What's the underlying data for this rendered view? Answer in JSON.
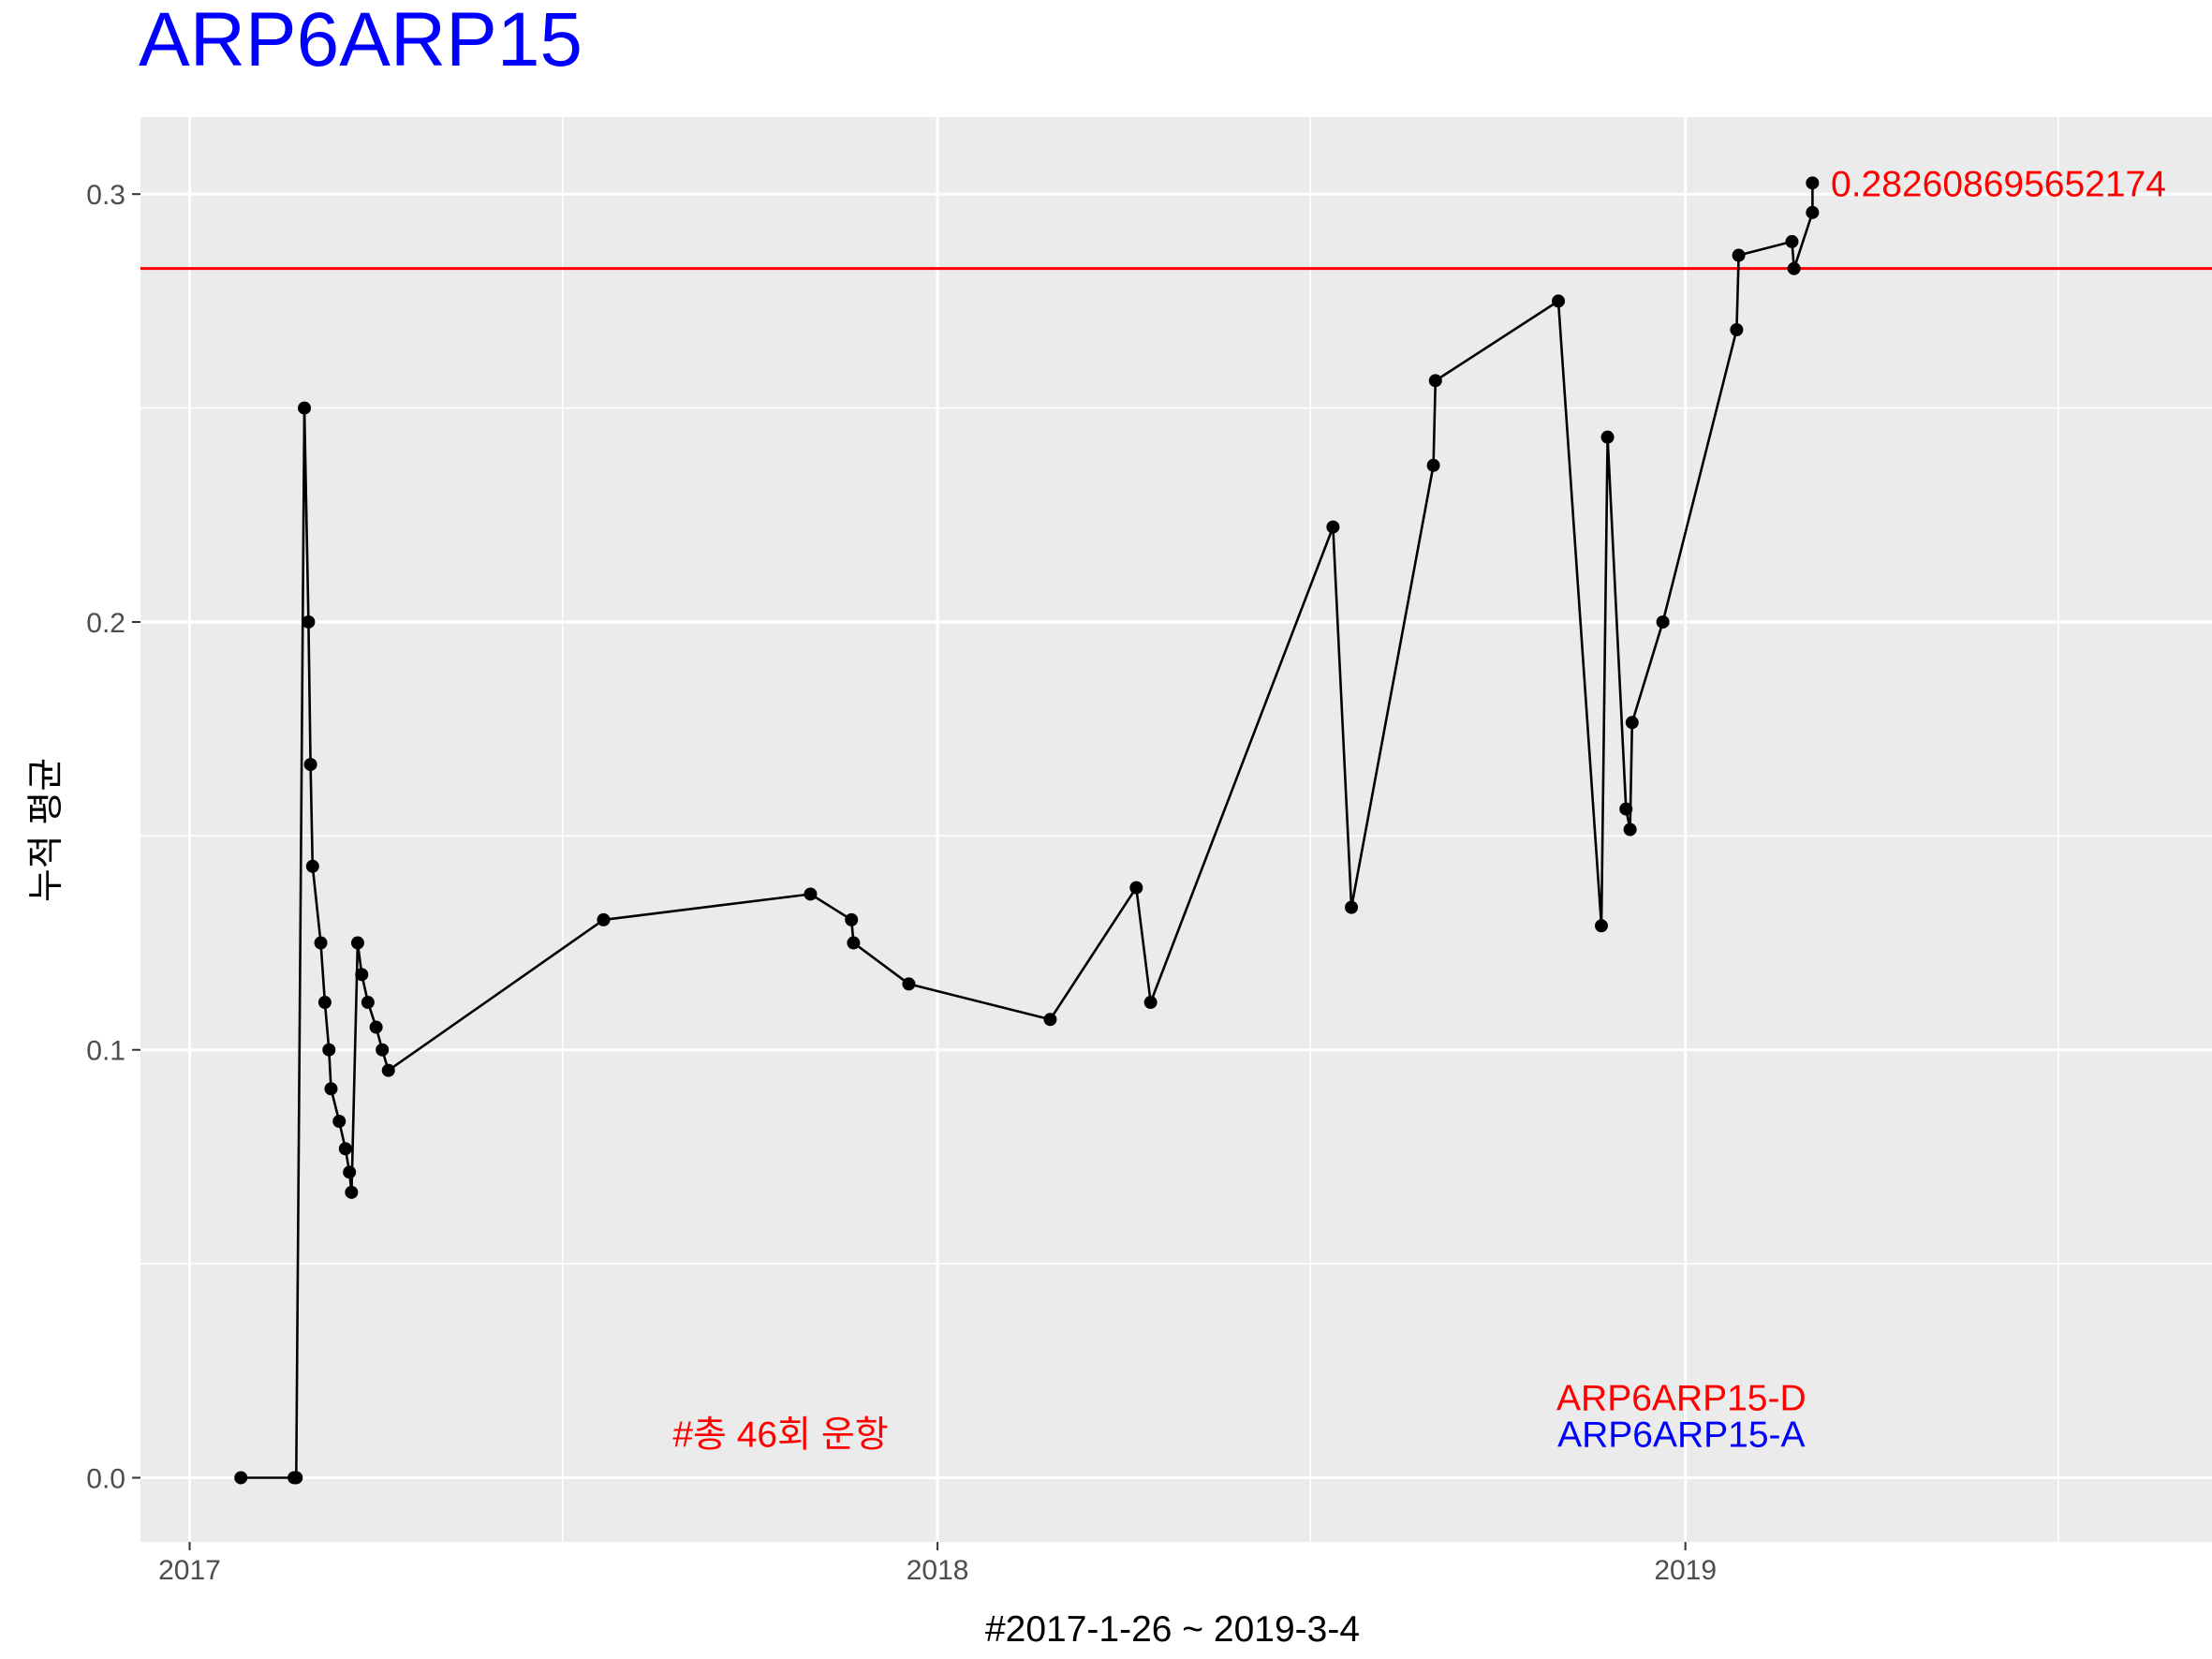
{
  "chart_data": {
    "type": "line",
    "title": "ARP6ARP15",
    "title_color": "#0000ff",
    "xlabel": "#2017-1-26 ~ 2019-3-4",
    "ylabel": "누적 평균",
    "x_ticks": [
      "2017",
      "2018",
      "2019"
    ],
    "y_ticks": [
      "0.0",
      "0.1",
      "0.2",
      "0.3"
    ],
    "ylim": [
      -0.015,
      0.318
    ],
    "xlim": [
      "2016-12-08",
      "2019-09-15"
    ],
    "grid": true,
    "panel_background": "#ebebeb",
    "reference_line": {
      "value": 0.2826086957,
      "color": "#ff0000",
      "label": "0.282608695652174"
    },
    "series": [
      {
        "color": "#000000",
        "points": [
          [
            "2017-01-26",
            0.0
          ],
          [
            "2017-02-21",
            0.0
          ],
          [
            "2017-02-22",
            0.0
          ],
          [
            "2017-02-26",
            0.25
          ],
          [
            "2017-02-28",
            0.2
          ],
          [
            "2017-03-01",
            0.1667
          ],
          [
            "2017-03-02",
            0.1429
          ],
          [
            "2017-03-06",
            0.125
          ],
          [
            "2017-03-08",
            0.1111
          ],
          [
            "2017-03-10",
            0.1
          ],
          [
            "2017-03-11",
            0.0909
          ],
          [
            "2017-03-15",
            0.0833
          ],
          [
            "2017-03-18",
            0.0769
          ],
          [
            "2017-03-20",
            0.0714
          ],
          [
            "2017-03-21",
            0.0667
          ],
          [
            "2017-03-24",
            0.125
          ],
          [
            "2017-03-26",
            0.1176
          ],
          [
            "2017-03-29",
            0.1111
          ],
          [
            "2017-04-02",
            0.1053
          ],
          [
            "2017-04-05",
            0.1
          ],
          [
            "2017-04-08",
            0.0952
          ],
          [
            "2017-07-22",
            0.1304
          ],
          [
            "2017-10-31",
            0.1364
          ],
          [
            "2017-11-20",
            0.1304
          ],
          [
            "2017-11-21",
            0.125
          ],
          [
            "2017-12-18",
            0.1154
          ],
          [
            "2018-02-25",
            0.1071
          ],
          [
            "2018-04-08",
            0.1379
          ],
          [
            "2018-04-15",
            0.1111
          ],
          [
            "2018-07-13",
            0.2222
          ],
          [
            "2018-07-22",
            0.1333
          ],
          [
            "2018-08-31",
            0.2366
          ],
          [
            "2018-09-01",
            0.2564
          ],
          [
            "2018-10-31",
            0.275
          ],
          [
            "2018-11-21",
            0.129
          ],
          [
            "2018-11-24",
            0.2432
          ],
          [
            "2018-12-03",
            0.1563
          ],
          [
            "2018-12-05",
            0.1515
          ],
          [
            "2018-12-06",
            0.1765
          ],
          [
            "2018-12-21",
            0.2
          ],
          [
            "2019-01-26",
            0.2683
          ],
          [
            "2019-01-27",
            0.2857
          ],
          [
            "2019-02-22",
            0.2889
          ],
          [
            "2019-02-23",
            0.2826
          ],
          [
            "2019-03-04",
            0.2957
          ],
          [
            "2019-03-04",
            0.3026
          ]
        ]
      }
    ],
    "annotations": [
      {
        "text": "#총 46회 운항",
        "color": "#ff0000",
        "x": "2017-12-08",
        "y": 0.0103,
        "anchor": "end"
      },
      {
        "text": "ARP6ARP15-D",
        "color": "#ff0000",
        "x": "2018-12-30",
        "y": 0.0188,
        "anchor": "middle"
      },
      {
        "text": "ARP6ARP15-A",
        "color": "#0000ff",
        "x": "2018-12-30",
        "y": 0.0103,
        "anchor": "middle"
      },
      {
        "text": "0.282608695652174",
        "color": "#ff0000",
        "x": "2019-03-13",
        "y": 0.3026,
        "anchor": "start"
      }
    ]
  }
}
